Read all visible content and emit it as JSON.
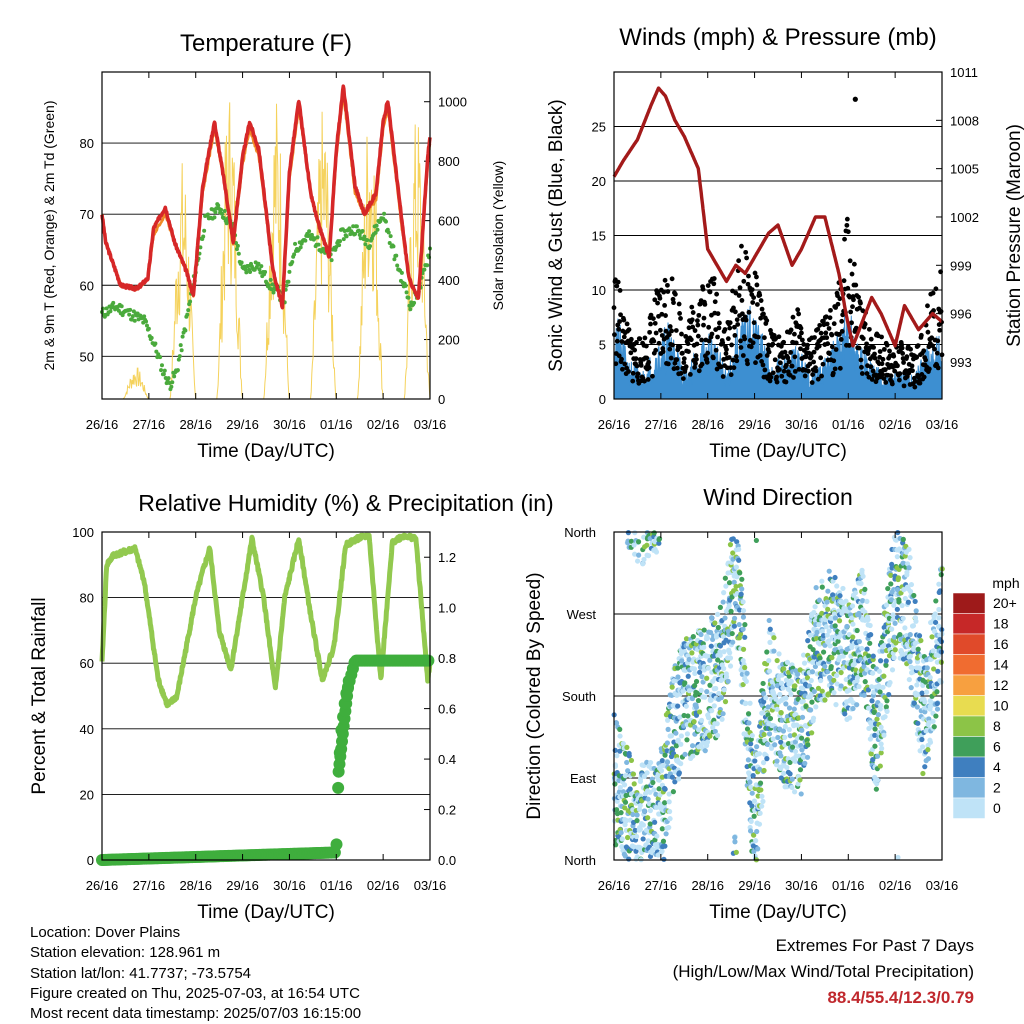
{
  "x_ticks": [
    "26/16",
    "27/16",
    "28/16",
    "29/16",
    "30/16",
    "01/16",
    "02/16",
    "03/16"
  ],
  "x_label": "Time (Day/UTC)",
  "chart_data": [
    {
      "type": "line",
      "title": "Temperature (F)",
      "xlabel": "Time (Day/UTC)",
      "ylabel": "2m & 9m T (Red, Orange) & 2m Td (Green)",
      "y2label": "Solar Insolation (Yellow)",
      "ylim": [
        44,
        90
      ],
      "yticks": [
        50,
        60,
        70,
        80
      ],
      "y2lim": [
        0,
        1100
      ],
      "y2ticks": [
        0,
        200,
        400,
        600,
        800,
        1000
      ],
      "grid": true,
      "colors": {
        "temp_2m": "#d62728",
        "temp_9m": "#f08a24",
        "dewpoint": "#4aaa3c",
        "solar": "#f5d25c"
      },
      "series": [
        {
          "key": "temp_2m",
          "x": [
            0,
            0.08,
            0.4,
            0.75,
            0.98,
            1.1,
            1.35,
            1.55,
            1.8,
            1.95,
            2.15,
            2.4,
            2.6,
            2.8,
            3.0,
            3.15,
            3.35,
            3.65,
            3.85,
            4.0,
            4.2,
            4.45,
            4.6,
            4.85,
            5.0,
            5.15,
            5.4,
            5.6,
            5.85,
            6.0,
            6.1,
            6.4,
            6.55,
            6.75,
            6.95,
            7.0
          ],
          "y": [
            70,
            66,
            60,
            59.5,
            61,
            68,
            71,
            66,
            62,
            58.5,
            74,
            83,
            75,
            66,
            78,
            83,
            79,
            62,
            57,
            76,
            86,
            73,
            69,
            64,
            79,
            88,
            74,
            70,
            73,
            83,
            86,
            69,
            61,
            58,
            78,
            81
          ]
        },
        {
          "key": "temp_9m",
          "x": [
            0,
            0.08,
            0.4,
            0.75,
            0.98,
            1.1,
            1.35,
            1.55,
            1.8,
            1.95,
            2.15,
            2.4,
            2.6,
            2.8,
            3.0,
            3.15,
            3.35,
            3.65,
            3.85,
            4.0,
            4.2,
            4.45,
            4.6,
            4.85,
            5.0,
            5.15,
            5.4,
            5.6,
            5.85,
            6.0,
            6.1,
            6.4,
            6.55,
            6.75,
            6.95,
            7.0
          ],
          "y": [
            70,
            66,
            60,
            59.5,
            61,
            67,
            70,
            66,
            62,
            58.5,
            73,
            82,
            75,
            66,
            77,
            82,
            78,
            62,
            57,
            75,
            85,
            73,
            69,
            64,
            78,
            87,
            73,
            70,
            72,
            82,
            85,
            68,
            61,
            58,
            77,
            80
          ]
        },
        {
          "key": "dewpoint",
          "x": [
            0,
            0.3,
            0.6,
            0.9,
            1.1,
            1.3,
            1.45,
            1.6,
            1.8,
            2.0,
            2.2,
            2.5,
            2.8,
            3.0,
            3.3,
            3.6,
            3.9,
            4.1,
            4.4,
            4.6,
            4.9,
            5.1,
            5.4,
            5.7,
            6.0,
            6.3,
            6.6,
            6.8,
            7.0
          ],
          "y": [
            56,
            57,
            56,
            55,
            52,
            48,
            46,
            48,
            55,
            62,
            69,
            71,
            68,
            62,
            63,
            60,
            58,
            65,
            67,
            66,
            64,
            67,
            68,
            66,
            70,
            63,
            57,
            60,
            65
          ]
        },
        {
          "key": "solar",
          "peaks": [
            {
              "day": 0,
              "value": 110
            },
            {
              "day": 1,
              "value": 820
            },
            {
              "day": 2,
              "value": 1070
            },
            {
              "day": 3,
              "value": 1040
            },
            {
              "day": 4,
              "value": 1000
            },
            {
              "day": 5,
              "value": 1050
            },
            {
              "day": 6,
              "value": 980
            }
          ]
        }
      ]
    },
    {
      "type": "scatter",
      "title": "Winds (mph) & Pressure (mb)",
      "xlabel": "Time (Day/UTC)",
      "ylabel": "Sonic Wind & Gust (Blue, Black)",
      "y2label": "Station Pressure (Maroon)",
      "ylim": [
        0,
        30
      ],
      "yticks": [
        0,
        5,
        10,
        15,
        20,
        25
      ],
      "y2lim": [
        990.7,
        1011
      ],
      "y2ticks": [
        993,
        996,
        999,
        1002,
        1005,
        1008,
        1011
      ],
      "grid": true,
      "colors": {
        "wind": "#3d8fd1",
        "gust": "#000000",
        "pressure": "#a31a1a"
      },
      "pressure": {
        "x": [
          0,
          0.2,
          0.5,
          0.8,
          0.95,
          1.1,
          1.3,
          1.5,
          1.8,
          2.0,
          2.2,
          2.4,
          2.6,
          2.8,
          3.0,
          3.3,
          3.5,
          3.8,
          4.0,
          4.3,
          4.5,
          4.8,
          4.95,
          5.1,
          5.3,
          5.5,
          5.7,
          6.0,
          6.2,
          6.5,
          6.8,
          7.0
        ],
        "y": [
          1004.5,
          1005.5,
          1006.8,
          1009,
          1010,
          1009.5,
          1008,
          1007,
          1005,
          1000,
          999,
          998,
          999,
          998.5,
          999.5,
          1001,
          1001.5,
          999,
          1000,
          1002,
          1002,
          998.5,
          996,
          994,
          995.5,
          997,
          996,
          994,
          996.5,
          995,
          996,
          995.5
        ]
      },
      "wind_envelope": {
        "x": [
          0,
          0.3,
          0.6,
          0.9,
          1.2,
          1.5,
          1.8,
          2.1,
          2.4,
          2.7,
          3.0,
          3.3,
          3.6,
          3.9,
          4.2,
          4.5,
          4.8,
          5.0,
          5.2,
          5.5,
          5.8,
          6.1,
          6.4,
          6.7,
          7.0
        ],
        "y": [
          7,
          3,
          2,
          4,
          6,
          2,
          4,
          5,
          2,
          6,
          7,
          3,
          3,
          4,
          2,
          3,
          5,
          7,
          4,
          3,
          2,
          2,
          2,
          4,
          5
        ]
      },
      "gust_envelope": {
        "x": [
          0,
          0.3,
          0.6,
          0.9,
          1.2,
          1.5,
          1.8,
          2.1,
          2.4,
          2.7,
          3.0,
          3.3,
          3.6,
          3.9,
          4.2,
          4.5,
          4.8,
          5.0,
          5.2,
          5.5,
          5.8,
          6.1,
          6.4,
          6.7,
          7.0
        ],
        "y": [
          12,
          6,
          5,
          9,
          12,
          6,
          10,
          11,
          6,
          13,
          11,
          6,
          5,
          8,
          5,
          7,
          10,
          16,
          9,
          6,
          5,
          5,
          4,
          8,
          12
        ]
      },
      "max_gust": {
        "x": 5.15,
        "y": 27.5
      }
    },
    {
      "type": "line",
      "title": "Relative Humidity (%) & Precipitation (in)",
      "xlabel": "Time (Day/UTC)",
      "ylabel": "Percent & Total Rainfall",
      "ylim": [
        0,
        100
      ],
      "yticks": [
        0,
        20,
        40,
        60,
        80,
        100
      ],
      "y2lim": [
        0,
        1.3
      ],
      "y2ticks": [
        0.0,
        0.2,
        0.4,
        0.6,
        0.8,
        1.0,
        1.2
      ],
      "grid": true,
      "colors": {
        "rh": "#92c94f",
        "precip": "#3fae3d"
      },
      "rh": {
        "x": [
          0,
          0.1,
          0.25,
          0.5,
          0.7,
          0.9,
          1.0,
          1.2,
          1.4,
          1.6,
          1.8,
          2.0,
          2.15,
          2.3,
          2.5,
          2.75,
          3.0,
          3.2,
          3.45,
          3.7,
          3.9,
          4.2,
          4.45,
          4.7,
          4.95,
          5.2,
          5.45,
          5.7,
          5.95,
          6.2,
          6.45,
          6.7,
          6.95,
          7.0
        ],
        "y": [
          60,
          90,
          93,
          94,
          95,
          85,
          75,
          55,
          47,
          50,
          65,
          80,
          88,
          95,
          70,
          58,
          80,
          98,
          80,
          52,
          80,
          98,
          75,
          55,
          65,
          96,
          98,
          99,
          55,
          97,
          99,
          98,
          55,
          60
        ]
      },
      "precip": {
        "x": [
          0,
          5.0,
          5.05,
          5.1,
          5.2,
          5.3,
          5.4,
          7.0
        ],
        "y": [
          0.0,
          0.03,
          0.35,
          0.5,
          0.65,
          0.72,
          0.79,
          0.79
        ]
      }
    },
    {
      "type": "scatter",
      "title": "Wind Direction",
      "xlabel": "Time (Day/UTC)",
      "ylabel": "Direction (Colored By Speed)",
      "ylim": [
        0,
        360
      ],
      "ytick_labels": [
        "North",
        "East",
        "South",
        "West",
        "North"
      ],
      "grid": true,
      "legend": {
        "title": "mph",
        "labels": [
          "20+",
          "18",
          "16",
          "14",
          "12",
          "10",
          "8",
          "6",
          "4",
          "2",
          "0"
        ],
        "colors": [
          "#9e1a1a",
          "#c62828",
          "#e04a2a",
          "#f06c30",
          "#f7a040",
          "#e8dc50",
          "#8cc447",
          "#3f9f5a",
          "#3f7fbf",
          "#7fb7e0",
          "#bfe3f7"
        ]
      },
      "dominant_direction": {
        "x": [
          0,
          0.5,
          1.0,
          1.3,
          1.6,
          2.0,
          2.3,
          2.6,
          3.0,
          3.3,
          3.6,
          4.0,
          4.3,
          4.6,
          5.0,
          5.3,
          5.6,
          6.0,
          6.3,
          6.6,
          7.0
        ],
        "y": [
          90,
          30,
          50,
          150,
          180,
          190,
          210,
          330,
          40,
          200,
          150,
          140,
          230,
          250,
          220,
          250,
          140,
          300,
          270,
          150,
          260
        ]
      }
    }
  ],
  "info": {
    "location": "Location: Dover Plains",
    "elevation": "Station elevation: 128.961 m",
    "latlon": "Station lat/lon: 41.7737; -73.5754",
    "created": "Figure created on Thu, 2025-07-03, at 16:54 UTC",
    "recent": "Most recent data timestamp: 2025/07/03 16:15:00"
  },
  "extremes": {
    "title": "Extremes For Past 7 Days",
    "subtitle": "(High/Low/Max Wind/Total Precipitation)",
    "values": "88.4/55.4/12.3/0.79"
  }
}
